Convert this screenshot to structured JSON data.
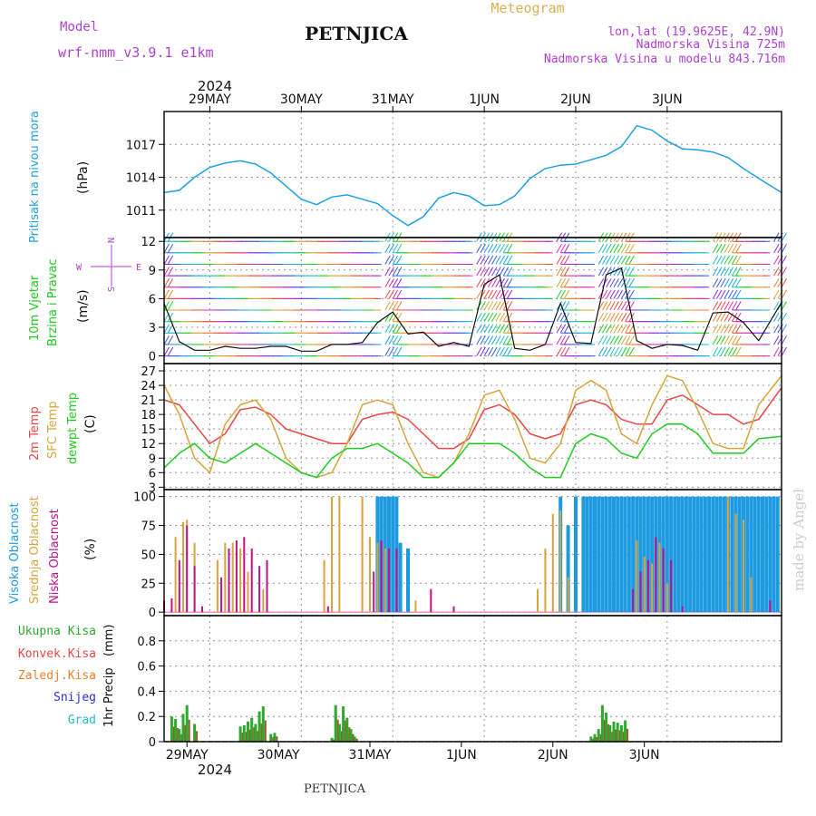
{
  "header": {
    "model_label": "Model",
    "model_name": "wrf-nmm_v3.9.1  e1km",
    "station": "PETNJICA",
    "product": "Meteogram",
    "coords": "lon,lat (19.9625E, 42.9N)",
    "elevation": "Nadmorska Visina 725m",
    "model_elevation": "Nadmorska Visina u modelu 843.716m",
    "year": "2024",
    "footer_station": "PETNJICA",
    "credit": "made by Angel"
  },
  "colors": {
    "pressure": "#1ea0e6",
    "wind_label": "#1ec81e",
    "temp2m": "#e84848",
    "sfc": "#d9a53a",
    "dewpt": "#22cc22",
    "high_cloud": "#1e9be0",
    "mid_cloud": "#d9a53a",
    "low_cloud": "#c0108a",
    "total_precip": "#2fa82f",
    "conv_precip": "#e84848",
    "frozen": "#f08030",
    "snow": "#3030d0",
    "grad": "#20c0c0",
    "wind_compass": "#b040d0"
  },
  "chart_data": [
    {
      "type": "line",
      "panel": "pressure",
      "ylabel": "Pritisak na nivou mora",
      "unit": "(hPa)",
      "ylim": [
        1008.5,
        1020
      ],
      "yticks": [
        1011,
        1014,
        1017
      ],
      "x_hours": [
        0,
        4,
        8,
        12,
        16,
        20,
        24,
        28,
        32,
        36,
        40,
        44,
        48,
        52,
        56,
        60,
        64,
        68,
        72,
        76,
        80,
        84,
        88,
        92,
        96,
        100,
        104,
        108,
        112,
        116,
        120,
        124,
        128,
        132,
        136,
        140,
        144,
        148,
        152,
        156,
        162
      ],
      "values": [
        1012.6,
        1012.8,
        1014.0,
        1014.9,
        1015.3,
        1015.5,
        1015.2,
        1014.4,
        1013.2,
        1012.0,
        1011.5,
        1012.2,
        1012.4,
        1012.0,
        1011.6,
        1010.5,
        1009.6,
        1010.4,
        1012.1,
        1012.6,
        1012.3,
        1011.4,
        1011.5,
        1012.3,
        1013.9,
        1014.8,
        1015.1,
        1015.2,
        1015.6,
        1016.0,
        1016.8,
        1018.7,
        1018.3,
        1017.3,
        1016.6,
        1016.5,
        1016.3,
        1015.8,
        1014.8,
        1013.9,
        1012.6
      ]
    },
    {
      "type": "line",
      "panel": "wind",
      "ylabel": "10m Vjetar Brzina i Pravac",
      "unit": "(m/s)",
      "ylim": [
        -0.8,
        12.4
      ],
      "yticks": [
        0,
        3,
        6,
        9,
        12
      ],
      "compass": {
        "n": "N",
        "s": "S",
        "e": "E",
        "w": "W"
      },
      "x_hours": [
        0,
        4,
        8,
        12,
        16,
        20,
        24,
        28,
        32,
        36,
        40,
        44,
        48,
        52,
        56,
        60,
        64,
        68,
        72,
        76,
        80,
        84,
        88,
        92,
        96,
        100,
        104,
        108,
        112,
        116,
        120,
        124,
        128,
        132,
        136,
        140,
        144,
        148,
        152,
        156,
        162
      ],
      "values": [
        5.5,
        1.5,
        0.6,
        0.6,
        1.0,
        0.8,
        0.8,
        1.0,
        1.0,
        0.5,
        0.5,
        1.2,
        1.2,
        1.4,
        3.5,
        4.6,
        2.3,
        2.5,
        1.0,
        1.4,
        1.0,
        7.5,
        8.5,
        0.8,
        0.6,
        1.2,
        5.5,
        1.4,
        1.3,
        8.5,
        9.2,
        1.6,
        0.8,
        1.2,
        1.1,
        0.6,
        4.5,
        4.6,
        3.5,
        1.6,
        5.6
      ]
    },
    {
      "type": "line",
      "panel": "temperature",
      "ylabel": "2m Temp / SFC Temp / dewpt Temp",
      "unit": "(C)",
      "ylim": [
        2.5,
        28.5
      ],
      "yticks": [
        3,
        6,
        9,
        12,
        15,
        18,
        21,
        24,
        27
      ],
      "x_hours": [
        0,
        4,
        8,
        12,
        16,
        20,
        24,
        28,
        32,
        36,
        40,
        44,
        48,
        52,
        56,
        60,
        64,
        68,
        72,
        76,
        80,
        84,
        88,
        92,
        96,
        100,
        104,
        108,
        112,
        116,
        120,
        124,
        128,
        132,
        136,
        140,
        144,
        148,
        152,
        156,
        162
      ],
      "series": [
        {
          "name": "2m Temp",
          "values": [
            21,
            20,
            16,
            12,
            14,
            19,
            19.5,
            18,
            15,
            14,
            13,
            12,
            12,
            17,
            18,
            18.5,
            17,
            14,
            11,
            11,
            13,
            19,
            20,
            18,
            14,
            13,
            14,
            20,
            21,
            20,
            17,
            16,
            16,
            21,
            22,
            20,
            18,
            18,
            16,
            17,
            23.5
          ]
        },
        {
          "name": "SFC Temp",
          "values": [
            24,
            18,
            9,
            6,
            16,
            20,
            21,
            17,
            9,
            6,
            5,
            6,
            12,
            20,
            21,
            20,
            12,
            6,
            5,
            8,
            14,
            22,
            23,
            17,
            9,
            8,
            12,
            23,
            25,
            23,
            14,
            12,
            20,
            26,
            25,
            19,
            12,
            11,
            11,
            20,
            26
          ]
        },
        {
          "name": "dewpt Temp",
          "values": [
            7,
            10,
            12,
            9,
            8,
            10,
            12,
            10,
            8,
            6,
            5,
            9,
            11,
            11,
            12,
            10,
            8,
            5,
            5,
            8,
            12,
            12,
            12,
            10,
            7,
            5,
            5,
            12,
            14,
            13,
            10,
            9,
            14,
            16,
            16,
            14,
            10,
            10,
            10,
            13,
            13.5
          ]
        }
      ]
    },
    {
      "type": "bar",
      "panel": "clouds",
      "ylabel": "Visoka Oblacnost / Srednja Oblacnost / Niska Oblacnost",
      "unit": "(%)",
      "ylim": [
        -3,
        106
      ],
      "yticks": [
        0,
        25,
        50,
        75,
        100
      ],
      "series": [
        {
          "name": "Visoka Oblacnost",
          "points": [
            [
              56,
              100
            ],
            [
              57,
              100
            ],
            [
              58,
              100
            ],
            [
              59,
              100
            ],
            [
              60,
              100
            ],
            [
              61,
              100
            ],
            [
              62,
              60
            ],
            [
              64,
              55
            ],
            [
              104,
              100
            ],
            [
              106,
              75
            ],
            [
              108,
              100
            ],
            [
              110,
              100
            ],
            [
              111,
              100
            ],
            [
              112,
              100
            ],
            [
              113,
              100
            ],
            [
              114,
              100
            ],
            [
              115,
              100
            ],
            [
              116,
              100
            ],
            [
              117,
              100
            ],
            [
              118,
              100
            ],
            [
              119,
              100
            ],
            [
              120,
              100
            ],
            [
              121,
              100
            ],
            [
              122,
              100
            ],
            [
              123,
              100
            ],
            [
              124,
              100
            ],
            [
              125,
              100
            ],
            [
              126,
              100
            ],
            [
              127,
              100
            ],
            [
              128,
              100
            ],
            [
              129,
              100
            ],
            [
              130,
              100
            ],
            [
              131,
              100
            ],
            [
              132,
              100
            ],
            [
              133,
              100
            ],
            [
              134,
              100
            ],
            [
              135,
              100
            ],
            [
              136,
              100
            ],
            [
              137,
              100
            ],
            [
              138,
              100
            ],
            [
              139,
              100
            ],
            [
              140,
              100
            ],
            [
              141,
              100
            ],
            [
              142,
              100
            ],
            [
              143,
              100
            ],
            [
              144,
              100
            ],
            [
              145,
              100
            ],
            [
              146,
              100
            ],
            [
              147,
              100
            ],
            [
              148,
              100
            ],
            [
              149,
              100
            ],
            [
              150,
              100
            ],
            [
              151,
              100
            ],
            [
              152,
              100
            ],
            [
              153,
              100
            ],
            [
              154,
              100
            ],
            [
              155,
              100
            ],
            [
              156,
              100
            ],
            [
              157,
              100
            ],
            [
              158,
              100
            ],
            [
              159,
              100
            ],
            [
              160,
              100
            ],
            [
              161,
              100
            ]
          ]
        },
        {
          "name": "Srednja Oblacnost",
          "points": [
            [
              3,
              65
            ],
            [
              5,
              78
            ],
            [
              6,
              80
            ],
            [
              8,
              60
            ],
            [
              14,
              45
            ],
            [
              16,
              60
            ],
            [
              18,
              60
            ],
            [
              20,
              55
            ],
            [
              22,
              35
            ],
            [
              26,
              20
            ],
            [
              42,
              45
            ],
            [
              44,
              100
            ],
            [
              46,
              100
            ],
            [
              52,
              100
            ],
            [
              54,
              65
            ],
            [
              56,
              60
            ],
            [
              58,
              55
            ],
            [
              66,
              10
            ],
            [
              98,
              20
            ],
            [
              100,
              55
            ],
            [
              102,
              85
            ],
            [
              104,
              88
            ],
            [
              106,
              30
            ],
            [
              124,
              62
            ],
            [
              126,
              48
            ],
            [
              128,
              42
            ],
            [
              130,
              60
            ],
            [
              132,
              25
            ],
            [
              148,
              100
            ],
            [
              150,
              85
            ],
            [
              152,
              80
            ],
            [
              154,
              30
            ]
          ]
        },
        {
          "name": "Niska Oblacnost",
          "points": [
            [
              0,
              10
            ],
            [
              2,
              12
            ],
            [
              4,
              45
            ],
            [
              6,
              75
            ],
            [
              8,
              40
            ],
            [
              10,
              5
            ],
            [
              15,
              30
            ],
            [
              17,
              55
            ],
            [
              19,
              62
            ],
            [
              21,
              65
            ],
            [
              23,
              55
            ],
            [
              25,
              40
            ],
            [
              27,
              45
            ],
            [
              43,
              5
            ],
            [
              55,
              35
            ],
            [
              57,
              62
            ],
            [
              59,
              55
            ],
            [
              61,
              55
            ],
            [
              70,
              20
            ],
            [
              76,
              5
            ],
            [
              123,
              20
            ],
            [
              125,
              35
            ],
            [
              127,
              45
            ],
            [
              129,
              65
            ],
            [
              131,
              55
            ],
            [
              133,
              45
            ],
            [
              136,
              5
            ],
            [
              159,
              10
            ]
          ]
        }
      ]
    },
    {
      "type": "bar",
      "panel": "precipitation",
      "ylabel": "1hr Precip",
      "unit": "(mm)",
      "ylim": [
        0,
        1.0
      ],
      "yticks": [
        0,
        0.2,
        0.4,
        0.6,
        0.8
      ],
      "legend": [
        "Ukupna  Kisa",
        "Konvek.Kisa",
        "Zaledj.Kisa",
        "Snijeg",
        "Grad"
      ],
      "series": [
        {
          "name": "Ukupna  Kisa",
          "points": [
            [
              2,
              0.2
            ],
            [
              3,
              0.18
            ],
            [
              4,
              0.1
            ],
            [
              5,
              0.22
            ],
            [
              6,
              0.29
            ],
            [
              8,
              0.14
            ],
            [
              20,
              0.12
            ],
            [
              21,
              0.13
            ],
            [
              22,
              0.16
            ],
            [
              23,
              0.19
            ],
            [
              24,
              0.14
            ],
            [
              25,
              0.24
            ],
            [
              26,
              0.28
            ],
            [
              28,
              0.06
            ],
            [
              29,
              0.07
            ],
            [
              44,
              0.03
            ],
            [
              45,
              0.29
            ],
            [
              46,
              0.14
            ],
            [
              47,
              0.28
            ],
            [
              48,
              0.19
            ],
            [
              49,
              0.1
            ],
            [
              50,
              0.04
            ],
            [
              112,
              0.04
            ],
            [
              113,
              0.06
            ],
            [
              114,
              0.1
            ],
            [
              115,
              0.29
            ],
            [
              116,
              0.23
            ],
            [
              117,
              0.13
            ],
            [
              118,
              0.16
            ],
            [
              119,
              0.15
            ],
            [
              120,
              0.13
            ],
            [
              121,
              0.17
            ]
          ]
        }
      ]
    }
  ],
  "x_axis": {
    "start_hour": 0,
    "end_hour": 162,
    "day_ticks": [
      {
        "label": "29MAY",
        "h": 12
      },
      {
        "label": "30MAY",
        "h": 36
      },
      {
        "label": "31MAY",
        "h": 60
      },
      {
        "label": "1JUN",
        "h": 84
      },
      {
        "label": "2JUN",
        "h": 108
      },
      {
        "label": "3JUN",
        "h": 132
      }
    ],
    "bottom_ticks": [
      {
        "label": "29MAY",
        "h": 6
      },
      {
        "label": "30MAY",
        "h": 30
      },
      {
        "label": "31MAY",
        "h": 54
      },
      {
        "label": "1JUN",
        "h": 78
      },
      {
        "label": "2JUN",
        "h": 102
      },
      {
        "label": "3JUN",
        "h": 126
      }
    ]
  }
}
